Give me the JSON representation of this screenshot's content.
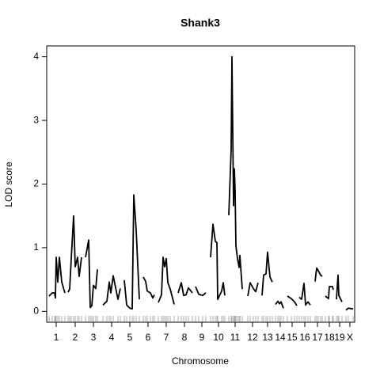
{
  "chart_data": {
    "type": "line",
    "title": "Shank3",
    "x_label": "Chromosome",
    "y_label": "LOD score",
    "xlim": [
      0,
      389
    ],
    "ylim": [
      -0.17,
      4.17
    ],
    "yticks": [
      0,
      1,
      2,
      3,
      4
    ],
    "xticks": [
      {
        "value": 12,
        "label": "1"
      },
      {
        "value": 36,
        "label": "2"
      },
      {
        "value": 59,
        "label": "3"
      },
      {
        "value": 82,
        "label": "4"
      },
      {
        "value": 105,
        "label": "5"
      },
      {
        "value": 128,
        "label": "6"
      },
      {
        "value": 151,
        "label": "7"
      },
      {
        "value": 174,
        "label": "8"
      },
      {
        "value": 196,
        "label": "9"
      },
      {
        "value": 217,
        "label": "10"
      },
      {
        "value": 238,
        "label": "11"
      },
      {
        "value": 260,
        "label": "12"
      },
      {
        "value": 279,
        "label": "13"
      },
      {
        "value": 295,
        "label": "14"
      },
      {
        "value": 310,
        "label": "15"
      },
      {
        "value": 326,
        "label": "16"
      },
      {
        "value": 342,
        "label": "17"
      },
      {
        "value": 357,
        "label": "18"
      },
      {
        "value": 370,
        "label": "19"
      },
      {
        "value": 383,
        "label": "X"
      }
    ],
    "x": [
      3,
      7,
      10,
      11,
      12,
      14,
      16,
      19,
      23,
      25,
      27,
      29,
      31,
      34,
      36,
      39,
      41,
      44,
      46,
      49,
      53,
      55,
      57,
      59,
      62,
      64,
      67,
      71,
      76,
      79,
      81,
      84,
      90,
      93,
      95,
      98,
      101,
      105,
      108,
      110,
      113,
      117,
      119,
      122,
      125,
      127,
      131,
      134,
      136,
      138,
      141,
      145,
      147,
      149,
      151,
      153,
      156,
      161,
      163,
      166,
      170,
      173,
      176,
      179,
      184,
      186,
      188,
      192,
      197,
      201,
      204,
      207,
      210,
      213,
      215,
      216,
      221,
      223,
      225,
      227,
      230,
      233,
      234,
      236,
      237,
      238,
      239,
      241,
      243,
      244,
      247,
      250,
      254,
      257,
      261,
      264,
      267,
      269,
      272,
      274,
      277,
      279,
      282,
      285,
      287,
      289,
      292,
      294,
      296,
      299,
      301,
      304,
      309,
      313,
      316,
      317,
      319,
      322,
      325,
      327,
      330,
      333,
      336,
      339,
      341,
      343,
      346,
      348,
      350,
      352,
      356,
      357,
      361,
      362,
      364,
      366,
      368,
      369,
      373,
      375,
      378,
      381,
      387
    ],
    "series": [
      {
        "name": "LOD",
        "color": "#000000",
        "values": [
          0.24,
          0.29,
          0.29,
          0.21,
          0.85,
          0.46,
          0.85,
          0.46,
          0.29,
          null,
          0.3,
          0.35,
          0.83,
          1.5,
          0.7,
          0.85,
          0.55,
          0.85,
          null,
          0.85,
          1.12,
          0.06,
          0.09,
          0.41,
          0.36,
          0.66,
          null,
          0.1,
          0.16,
          0.46,
          0.29,
          0.56,
          0.19,
          0.36,
          null,
          0.49,
          0.1,
          0.05,
          0.04,
          1.83,
          1.28,
          0.19,
          null,
          0.54,
          0.47,
          0.32,
          0.29,
          0.21,
          0.26,
          null,
          0.14,
          0.26,
          0.85,
          0.7,
          0.83,
          0.45,
          0.35,
          0.11,
          null,
          0.29,
          0.45,
          0.25,
          0.26,
          0.37,
          0.29,
          null,
          0.39,
          0.27,
          0.25,
          0.29,
          null,
          0.85,
          1.37,
          1.1,
          1.08,
          0.19,
          0.32,
          0.45,
          0.25,
          null,
          1.51,
          2.55,
          4.0,
          1.66,
          2.24,
          1.89,
          1.03,
          0.83,
          0.69,
          0.88,
          0.35,
          null,
          0.24,
          0.45,
          0.36,
          0.31,
          0.45,
          null,
          0.25,
          0.57,
          0.59,
          0.93,
          0.54,
          0.46,
          null,
          0.11,
          0.16,
          0.12,
          0.15,
          0.05,
          null,
          0.24,
          0.2,
          0.15,
          0.09,
          null,
          0.22,
          0.19,
          0.44,
          0.1,
          0.15,
          0.1,
          null,
          0.47,
          0.68,
          0.64,
          0.57,
          0.55,
          null,
          0.24,
          0.2,
          0.39,
          0.39,
          0.34,
          null,
          0.19,
          0.57,
          0.25,
          0.15,
          null,
          0.02,
          0.05,
          0.04
        ]
      }
    ]
  }
}
